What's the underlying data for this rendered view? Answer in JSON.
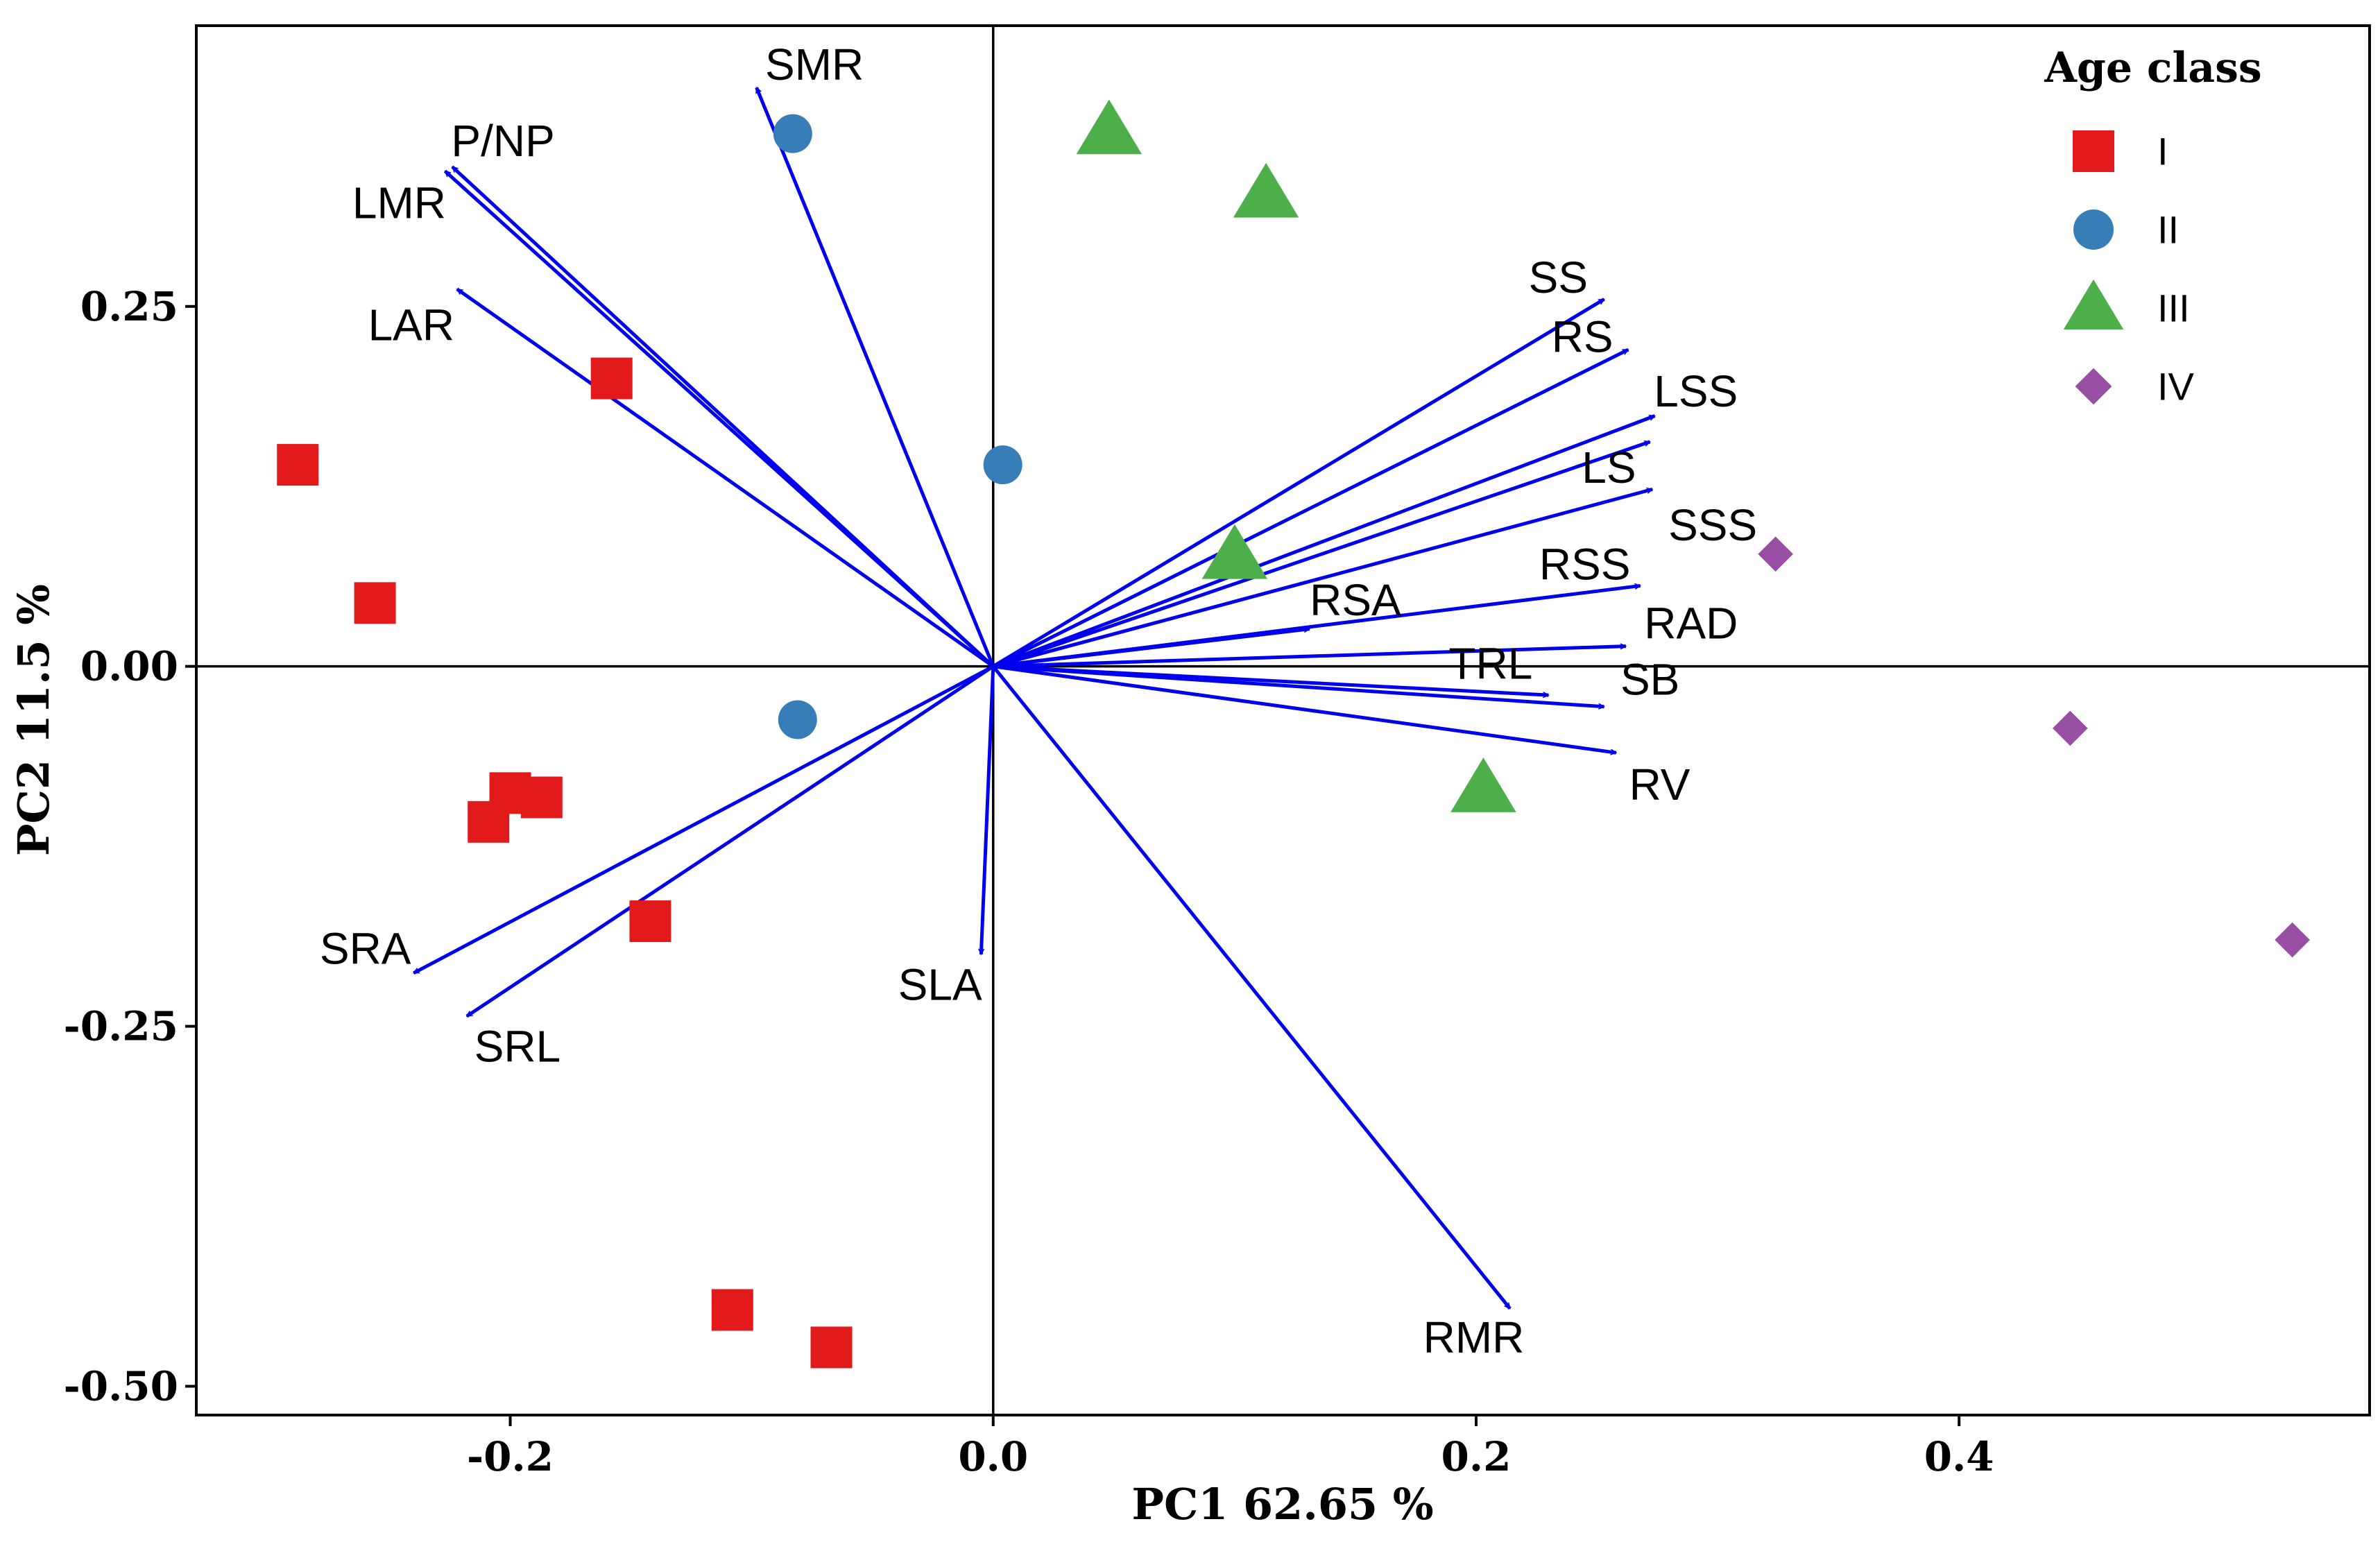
{
  "chart_data": {
    "type": "scatter",
    "subtype": "pca-biplot",
    "xlabel": "PC1 62.65  %",
    "ylabel": "PC2 11.5  %",
    "xlim": [
      -0.33,
      0.57
    ],
    "ylim": [
      -0.52,
      0.445
    ],
    "x_ticks": [
      -0.2,
      0.0,
      0.2,
      0.4
    ],
    "x_tick_labels": [
      "-0.2",
      "0.0",
      "0.2",
      "0.4"
    ],
    "y_ticks": [
      -0.5,
      -0.25,
      0.0,
      0.25
    ],
    "y_tick_labels": [
      "-0.50",
      "-0.25",
      "0.00",
      "0.25"
    ],
    "reference_lines": {
      "x": 0,
      "y": 0
    },
    "grid": false,
    "legend": {
      "title": "Age class",
      "position": "top-right",
      "entries": [
        {
          "label": "I",
          "shape": "square",
          "color": "#e31a1c"
        },
        {
          "label": "II",
          "shape": "circle",
          "color": "#377eb8"
        },
        {
          "label": "III",
          "shape": "triangle",
          "color": "#4daf4a"
        },
        {
          "label": "IV",
          "shape": "diamond",
          "color": "#984ea3"
        }
      ]
    },
    "arrow_color": "#0000ee",
    "points": [
      {
        "group": "I",
        "x": -0.288,
        "y": 0.14
      },
      {
        "group": "I",
        "x": -0.256,
        "y": 0.044
      },
      {
        "group": "I",
        "x": -0.158,
        "y": 0.2
      },
      {
        "group": "I",
        "x": -0.2,
        "y": -0.088
      },
      {
        "group": "I",
        "x": -0.209,
        "y": -0.108
      },
      {
        "group": "I",
        "x": -0.187,
        "y": -0.091
      },
      {
        "group": "I",
        "x": -0.142,
        "y": -0.177
      },
      {
        "group": "I",
        "x": -0.108,
        "y": -0.447
      },
      {
        "group": "I",
        "x": -0.067,
        "y": -0.473
      },
      {
        "group": "II",
        "x": -0.083,
        "y": 0.37
      },
      {
        "group": "II",
        "x": 0.004,
        "y": 0.14
      },
      {
        "group": "II",
        "x": -0.081,
        "y": -0.037
      },
      {
        "group": "III",
        "x": 0.048,
        "y": 0.372
      },
      {
        "group": "III",
        "x": 0.113,
        "y": 0.328
      },
      {
        "group": "III",
        "x": 0.1,
        "y": 0.077
      },
      {
        "group": "III",
        "x": 0.203,
        "y": -0.085
      },
      {
        "group": "IV",
        "x": 0.324,
        "y": 0.078
      },
      {
        "group": "IV",
        "x": 0.446,
        "y": -0.043
      },
      {
        "group": "IV",
        "x": 0.538,
        "y": -0.19
      }
    ],
    "loadings": [
      {
        "name": "SMR",
        "x": -0.098,
        "y": 0.402
      },
      {
        "name": "P/NP",
        "x": -0.224,
        "y": 0.347
      },
      {
        "name": "LMR",
        "x": -0.227,
        "y": 0.344
      },
      {
        "name": "LAR",
        "x": -0.222,
        "y": 0.262
      },
      {
        "name": "SS",
        "x": 0.253,
        "y": 0.255
      },
      {
        "name": "RS",
        "x": 0.263,
        "y": 0.22
      },
      {
        "name": "LSS",
        "x": 0.274,
        "y": 0.174
      },
      {
        "name": "LS",
        "x": 0.272,
        "y": 0.156
      },
      {
        "name": "SSS",
        "x": 0.273,
        "y": 0.123
      },
      {
        "name": "RSS",
        "x": 0.268,
        "y": 0.056
      },
      {
        "name": "RSA",
        "x": 0.131,
        "y": 0.026
      },
      {
        "name": "RAD",
        "x": 0.262,
        "y": 0.014
      },
      {
        "name": "TRL",
        "x": 0.23,
        "y": -0.02
      },
      {
        "name": "SB",
        "x": 0.253,
        "y": -0.028
      },
      {
        "name": "RV",
        "x": 0.258,
        "y": -0.06
      },
      {
        "name": "RMR",
        "x": 0.214,
        "y": -0.446
      },
      {
        "name": "SLA",
        "x": -0.005,
        "y": -0.2
      },
      {
        "name": "SRA",
        "x": -0.24,
        "y": -0.213
      },
      {
        "name": "SRL",
        "x": -0.218,
        "y": -0.243
      }
    ],
    "label_positions": {
      "SMR": [
        -0.074,
        0.418
      ],
      "P/NP": [
        -0.203,
        0.365
      ],
      "LMR": [
        -0.246,
        0.322
      ],
      "LAR": [
        -0.241,
        0.237
      ],
      "SS": [
        0.234,
        0.27
      ],
      "RS": [
        0.244,
        0.229
      ],
      "LSS": [
        0.291,
        0.191
      ],
      "LS": [
        0.255,
        0.138
      ],
      "SSS": [
        0.298,
        0.098
      ],
      "RSS": [
        0.245,
        0.071
      ],
      "RSA": [
        0.15,
        0.046
      ],
      "RAD": [
        0.289,
        0.03
      ],
      "TRL": [
        0.206,
        0.002
      ],
      "SB": [
        0.272,
        -0.009
      ],
      "RV": [
        0.276,
        -0.082
      ],
      "RMR": [
        0.199,
        -0.466
      ],
      "SLA": [
        -0.022,
        -0.221
      ],
      "SRA": [
        -0.26,
        -0.196
      ],
      "SRL": [
        -0.197,
        -0.264
      ]
    }
  }
}
